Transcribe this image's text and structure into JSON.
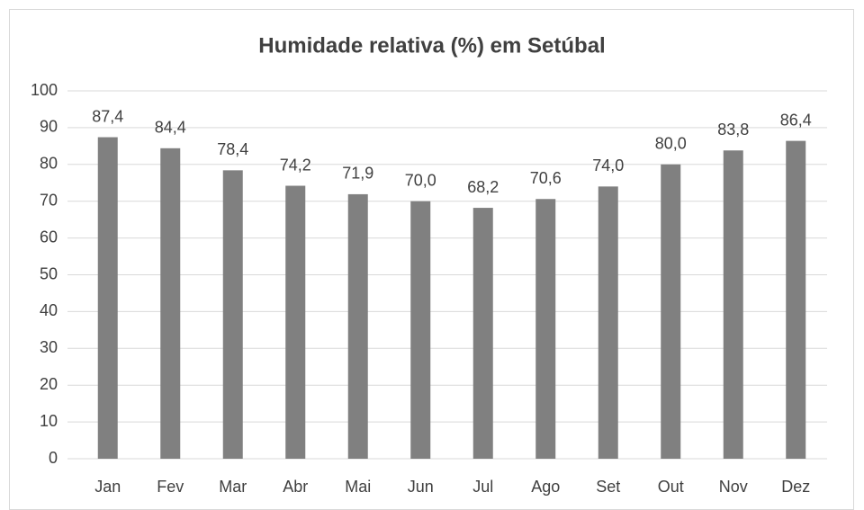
{
  "chart_data": {
    "type": "bar",
    "title": "Humidade relativa (%) em Setúbal",
    "categories": [
      "Jan",
      "Fev",
      "Mar",
      "Abr",
      "Mai",
      "Jun",
      "Jul",
      "Ago",
      "Set",
      "Out",
      "Nov",
      "Dez"
    ],
    "values": [
      87.4,
      84.4,
      78.4,
      74.2,
      71.9,
      70.0,
      68.2,
      70.6,
      74.0,
      80.0,
      83.8,
      86.4
    ],
    "value_labels": [
      "87,4",
      "84,4",
      "78,4",
      "74,2",
      "71,9",
      "70,0",
      "68,2",
      "70,6",
      "74,0",
      "80,0",
      "83,8",
      "86,4"
    ],
    "color": "#808080",
    "ylim": [
      0,
      100
    ],
    "yticks": [
      0,
      10,
      20,
      30,
      40,
      50,
      60,
      70,
      80,
      90,
      100
    ],
    "grid": true
  }
}
